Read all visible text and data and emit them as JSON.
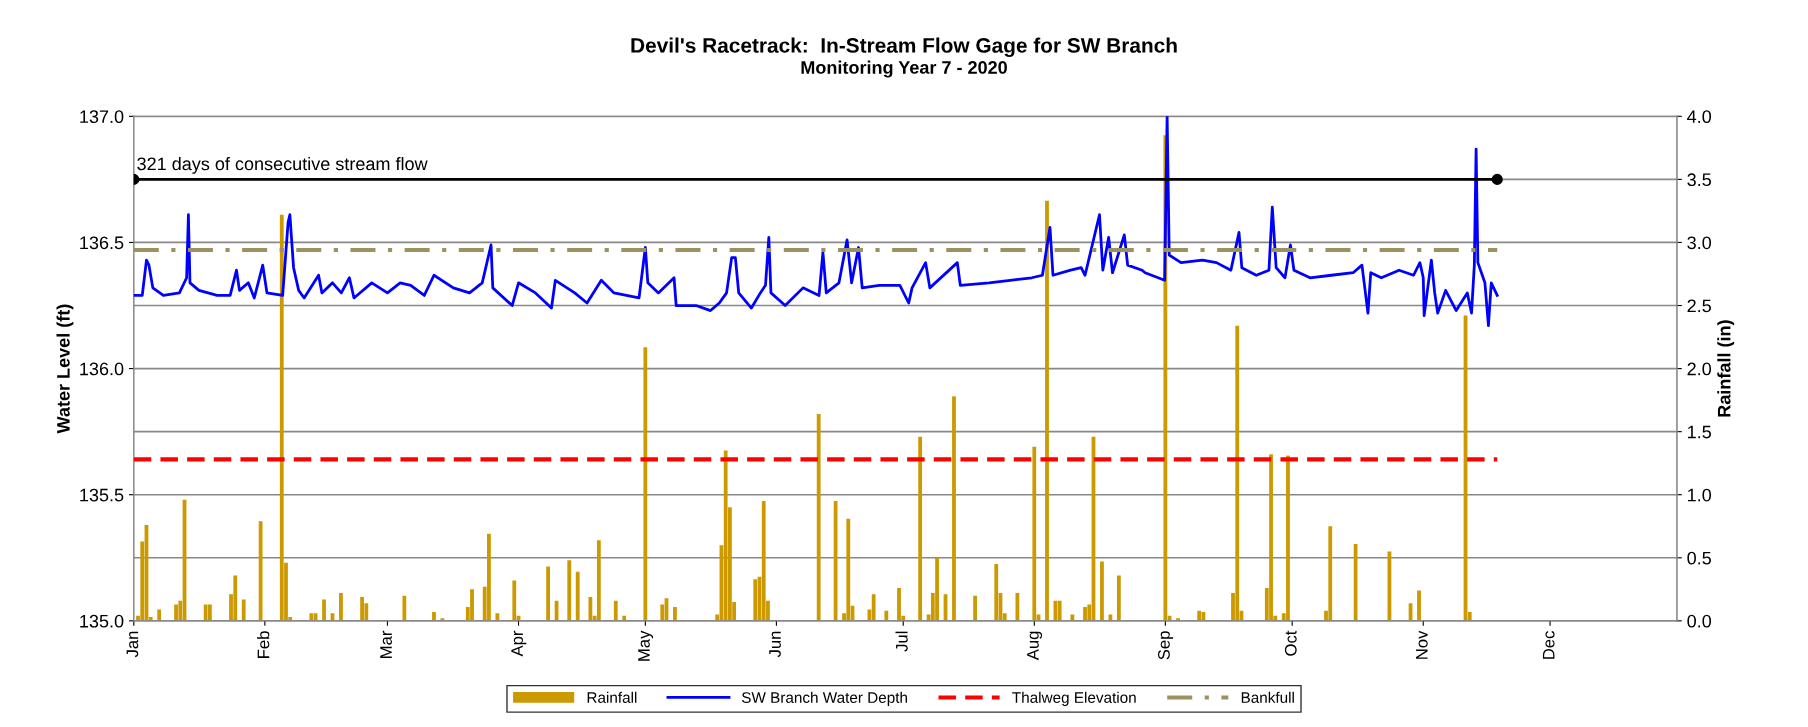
{
  "chart_data": {
    "type": "line",
    "title": "Devil's Racetrack:  In-Stream Flow Gage for SW Branch",
    "subtitle": "Monitoring Year 7 - 2020",
    "ylabel": "Water Level (ft)",
    "y2label": "Rainfall (in)",
    "xlim": [
      "2020-01-01",
      "2020-12-31"
    ],
    "xticks": [
      {
        "value": "2020-01-01",
        "label": "Jan"
      },
      {
        "value": "2020-02-01",
        "label": "Feb"
      },
      {
        "value": "2020-03-01",
        "label": "Mar"
      },
      {
        "value": "2020-04-01",
        "label": "Apr"
      },
      {
        "value": "2020-05-01",
        "label": "May"
      },
      {
        "value": "2020-06-01",
        "label": "Jun"
      },
      {
        "value": "2020-07-01",
        "label": "Jul"
      },
      {
        "value": "2020-08-01",
        "label": "Aug"
      },
      {
        "value": "2020-09-01",
        "label": "Sep"
      },
      {
        "value": "2020-10-01",
        "label": "Oct"
      },
      {
        "value": "2020-11-01",
        "label": "Nov"
      },
      {
        "value": "2020-12-01",
        "label": "Dec"
      }
    ],
    "ylim": [
      135.0,
      137.0
    ],
    "yticks": [
      {
        "value": 135,
        "label": "135.0"
      },
      {
        "value": 135.5,
        "label": "135.5"
      },
      {
        "value": 136,
        "label": "136.0"
      },
      {
        "value": 136.5,
        "label": "136.5"
      },
      {
        "value": 137,
        "label": "137.0"
      }
    ],
    "y2lim": [
      0,
      4.0
    ],
    "y2ticks": [
      {
        "value": 0,
        "label": "0.0"
      },
      {
        "value": 0.5,
        "label": "0.5"
      },
      {
        "value": 1,
        "label": "1.0"
      },
      {
        "value": 1.5,
        "label": "1.5"
      },
      {
        "value": 2,
        "label": "2.0"
      },
      {
        "value": 2.5,
        "label": "2.5"
      },
      {
        "value": 3,
        "label": "3.0"
      },
      {
        "value": 3.5,
        "label": "3.5"
      },
      {
        "value": 4,
        "label": "4.0"
      }
    ],
    "grid": "y",
    "legend": "bottom",
    "annotations": [
      {
        "text": "321 days of consecutive stream flow",
        "x": "2020-01-01",
        "y": 136.75
      }
    ],
    "series": [
      {
        "type": "bar",
        "axis": "y2",
        "name": "Rainfall",
        "color": "#cc9900",
        "x": [
          "2020-01-02",
          "2020-01-03",
          "2020-01-04",
          "2020-01-05",
          "2020-01-07",
          "2020-01-11",
          "2020-01-12",
          "2020-01-13",
          "2020-01-18",
          "2020-01-19",
          "2020-01-24",
          "2020-01-25",
          "2020-01-27",
          "2020-01-31",
          "2020-02-05",
          "2020-02-06",
          "2020-02-07",
          "2020-02-12",
          "2020-02-13",
          "2020-02-15",
          "2020-02-17",
          "2020-02-19",
          "2020-02-24",
          "2020-02-25",
          "2020-03-05",
          "2020-03-12",
          "2020-03-14",
          "2020-03-20",
          "2020-03-21",
          "2020-03-24",
          "2020-03-25",
          "2020-03-27",
          "2020-03-31",
          "2020-04-01",
          "2020-04-08",
          "2020-04-10",
          "2020-04-13",
          "2020-04-15",
          "2020-04-18",
          "2020-04-19",
          "2020-04-20",
          "2020-04-24",
          "2020-04-26",
          "2020-05-01",
          "2020-05-05",
          "2020-05-06",
          "2020-05-08",
          "2020-05-18",
          "2020-05-19",
          "2020-05-20",
          "2020-05-21",
          "2020-05-22",
          "2020-05-27",
          "2020-05-28",
          "2020-05-29",
          "2020-05-30",
          "2020-06-11",
          "2020-06-15",
          "2020-06-17",
          "2020-06-18",
          "2020-06-19",
          "2020-06-23",
          "2020-06-24",
          "2020-06-27",
          "2020-06-30",
          "2020-07-01",
          "2020-07-05",
          "2020-07-07",
          "2020-07-08",
          "2020-07-09",
          "2020-07-11",
          "2020-07-13",
          "2020-07-18",
          "2020-07-23",
          "2020-07-24",
          "2020-07-25",
          "2020-07-28",
          "2020-08-01",
          "2020-08-02",
          "2020-08-04",
          "2020-08-06",
          "2020-08-07",
          "2020-08-10",
          "2020-08-13",
          "2020-08-14",
          "2020-08-15",
          "2020-08-17",
          "2020-08-19",
          "2020-08-21",
          "2020-09-01",
          "2020-09-02",
          "2020-09-04",
          "2020-09-09",
          "2020-09-10",
          "2020-09-17",
          "2020-09-18",
          "2020-09-19",
          "2020-09-25",
          "2020-09-26",
          "2020-09-27",
          "2020-09-29",
          "2020-09-30",
          "2020-10-09",
          "2020-10-10",
          "2020-10-16",
          "2020-10-24",
          "2020-10-29",
          "2020-10-31",
          "2020-11-11",
          "2020-11-12"
        ],
        "values": [
          0.04,
          0.63,
          0.76,
          0.03,
          0.09,
          0.13,
          0.16,
          0.96,
          0.13,
          0.13,
          0.21,
          0.36,
          0.17,
          0.79,
          3.22,
          0.46,
          0.03,
          0.06,
          0.06,
          0.17,
          0.06,
          0.22,
          0.19,
          0.14,
          0.2,
          0.07,
          0.02,
          0.11,
          0.25,
          0.27,
          0.69,
          0.06,
          0.32,
          0.04,
          0.43,
          0.16,
          0.48,
          0.39,
          0.19,
          0.04,
          0.64,
          0.16,
          0.04,
          2.17,
          0.13,
          0.18,
          0.11,
          0.05,
          0.6,
          1.35,
          0.9,
          0.15,
          0.33,
          0.35,
          0.95,
          0.16,
          1.64,
          0.95,
          0.06,
          0.81,
          0.12,
          0.09,
          0.21,
          0.08,
          0.26,
          0.04,
          1.46,
          0.05,
          0.22,
          0.5,
          0.21,
          1.78,
          0.2,
          0.45,
          0.22,
          0.06,
          0.22,
          1.38,
          0.05,
          3.33,
          0.16,
          0.16,
          0.05,
          0.11,
          0.13,
          1.46,
          0.47,
          0.05,
          0.36,
          3.85,
          0.04,
          0.02,
          0.08,
          0.07,
          0.22,
          2.34,
          0.08,
          0.26,
          1.32,
          0.04,
          0.06,
          1.31,
          0.08,
          0.75,
          0.61,
          0.55,
          0.14,
          0.24,
          2.42,
          0.07
        ]
      },
      {
        "name": "SW Branch Water Depth",
        "color": "#0000ff",
        "line_style": "solid",
        "x": [
          "2020-01-01",
          "2020-01-03",
          "2020-01-04",
          "2020-01-04T14:00",
          "2020-01-05T12:00",
          "2020-01-08",
          "2020-01-11T19:00",
          "2020-01-13T12:00",
          "2020-01-13T22:00",
          "2020-01-14T07:00",
          "2020-01-16T10:00",
          "2020-01-20T17:00",
          "2020-01-23T19:00",
          "2020-01-25T07:00",
          "2020-01-26",
          "2020-01-28T02:00",
          "2020-01-29T12:00",
          "2020-01-31T12:00",
          "2020-02-01T12:00",
          "2020-02-05T05:00",
          "2020-02-06T12:00",
          "2020-02-06T22:00",
          "2020-02-07T19:00",
          "2020-02-09",
          "2020-02-10T07:00",
          "2020-02-13T17:00",
          "2020-02-14T12:00",
          "2020-02-17",
          "2020-02-19T02:00",
          "2020-02-21",
          "2020-02-22T02:00",
          "2020-02-26T07:00",
          "2020-03-01",
          "2020-03-04",
          "2020-03-06T12:00",
          "2020-03-09T17:00",
          "2020-03-12",
          "2020-03-16T14:00",
          "2020-03-20T10:00",
          "2020-03-23T10:00",
          "2020-03-25T12:00",
          "2020-03-25T22:00",
          "2020-03-30T12:00",
          "2020-04-01",
          "2020-04-05",
          "2020-04-08T19:00",
          "2020-04-09T17:00",
          "2020-04-14T07:00",
          "2020-04-17T05:00",
          "2020-04-20T14:00",
          "2020-04-23T14:00",
          "2020-04-29T12:00",
          "2020-05-01",
          "2020-05-01T14:00",
          "2020-05-04T02:00",
          "2020-05-07T19:00",
          "2020-05-08T07:00",
          "2020-05-13",
          "2020-05-16T10:00",
          "2020-05-18T12:00",
          "2020-05-20T05:00",
          "2020-05-21T10:00",
          "2020-05-22T07:00",
          "2020-05-23T02:00",
          "2020-05-26T02:00",
          "2020-05-28T05:00",
          "2020-05-29T10:00",
          "2020-05-30T05:00",
          "2020-05-30T17:00",
          "2020-06-03T02:00",
          "2020-06-07T07:00",
          "2020-06-11T02:00",
          "2020-06-12",
          "2020-06-12T19:00",
          "2020-06-15T19:00",
          "2020-06-17T17:00",
          "2020-06-18T19:00",
          "2020-06-20T10:00",
          "2020-06-21T07:00",
          "2020-06-25T07:00",
          "2020-06-30T05:00",
          "2020-07-02T07:00",
          "2020-07-03T02:00",
          "2020-07-06T07:00",
          "2020-07-07T07:00",
          "2020-07-13T19:00",
          "2020-07-14T12:00",
          "2020-07-21T07:00",
          "2020-07-26T07:00",
          "2020-07-31T10:00",
          "2020-08-02T22:00",
          "2020-08-04T17:00",
          "2020-08-05T10:00",
          "2020-08-09T14:00",
          "2020-08-12T02:00",
          "2020-08-13",
          "2020-08-16T10:00",
          "2020-08-17T05:00",
          "2020-08-18T14:00",
          "2020-08-19T12:00",
          "2020-08-22T07:00",
          "2020-08-23T02:00",
          "2020-08-26T12:00",
          "2020-08-27T05:00",
          "2020-08-31T20:00",
          "2020-09-01T10:00",
          "2020-09-01T22:00",
          "2020-09-04T17:00",
          "2020-09-09T19:00",
          "2020-09-13T02:00",
          "2020-09-16T12:00",
          "2020-09-18T10:00",
          "2020-09-19T02:00",
          "2020-09-22T12:00",
          "2020-09-25T12:00",
          "2020-09-26T07:00",
          "2020-09-27T05:00",
          "2020-09-29T07:00",
          "2020-09-30T14:00",
          "2020-10-01T10:00",
          "2020-10-05T05:00",
          "2020-10-10T07:00",
          "2020-10-15T10:00",
          "2020-10-17T12:00",
          "2020-10-18T22:00",
          "2020-10-19T14:00",
          "2020-10-22T02:00",
          "2020-10-26T07:00",
          "2020-10-29T17:00",
          "2020-10-31T05:00",
          "2020-11-01",
          "2020-11-01T05:00",
          "2020-11-02T22:00",
          "2020-11-03T17:00",
          "2020-11-04T10:00",
          "2020-11-06T07:00",
          "2020-11-08T19:00",
          "2020-11-11T10:00",
          "2020-11-12T10:00",
          "2020-11-13T02:00",
          "2020-11-13T12:00",
          "2020-11-13T22:00",
          "2020-11-15T14:00",
          "2020-11-16T10:00",
          "2020-11-17T02:00",
          "2020-11-18T12:00"
        ],
        "values": [
          136.29,
          136.29,
          136.43,
          136.41,
          136.32,
          136.29,
          136.3,
          136.36,
          136.61,
          136.34,
          136.31,
          136.29,
          136.29,
          136.39,
          136.31,
          136.34,
          136.28,
          136.41,
          136.3,
          136.29,
          136.58,
          136.61,
          136.4,
          136.31,
          136.28,
          136.37,
          136.3,
          136.34,
          136.3,
          136.36,
          136.28,
          136.34,
          136.3,
          136.34,
          136.33,
          136.29,
          136.37,
          136.32,
          136.3,
          136.34,
          136.49,
          136.32,
          136.25,
          136.34,
          136.3,
          136.24,
          136.35,
          136.3,
          136.26,
          136.35,
          136.3,
          136.28,
          136.48,
          136.34,
          136.3,
          136.36,
          136.25,
          136.25,
          136.23,
          136.26,
          136.3,
          136.44,
          136.44,
          136.3,
          136.24,
          136.3,
          136.33,
          136.52,
          136.3,
          136.25,
          136.32,
          136.29,
          136.46,
          136.3,
          136.34,
          136.51,
          136.34,
          136.48,
          136.32,
          136.33,
          136.33,
          136.26,
          136.32,
          136.42,
          136.32,
          136.42,
          136.33,
          136.34,
          136.35,
          136.36,
          136.37,
          136.56,
          136.37,
          136.39,
          136.4,
          136.37,
          136.61,
          136.39,
          136.52,
          136.38,
          136.53,
          136.41,
          136.39,
          136.38,
          136.35,
          137.0,
          136.45,
          136.42,
          136.43,
          136.42,
          136.39,
          136.54,
          136.4,
          136.37,
          136.39,
          136.64,
          136.4,
          136.36,
          136.49,
          136.39,
          136.36,
          136.37,
          136.38,
          136.41,
          136.22,
          136.38,
          136.36,
          136.39,
          136.37,
          136.42,
          136.36,
          136.21,
          136.43,
          136.3,
          136.22,
          136.31,
          136.23,
          136.3,
          136.22,
          136.41,
          136.87,
          136.42,
          136.34,
          136.17,
          136.34,
          136.29
        ]
      },
      {
        "name": "Thalweg Elevation",
        "color": "#ff0000",
        "line_style": "dashed",
        "x": [
          "2020-01-01",
          "2020-11-18T12:00"
        ],
        "values": [
          135.64,
          135.64
        ]
      },
      {
        "name": "Bankfull",
        "color": "#9c9160",
        "line_style": "dashdot",
        "x": [
          "2020-01-01",
          "2020-11-18T12:00"
        ],
        "values": [
          136.47,
          136.47
        ]
      },
      {
        "color": "#000000",
        "line_style": "solid",
        "marker": "circle",
        "x": [
          "2020-01-01",
          "2020-11-18T12:00"
        ],
        "values": [
          136.75,
          136.75
        ]
      }
    ]
  }
}
